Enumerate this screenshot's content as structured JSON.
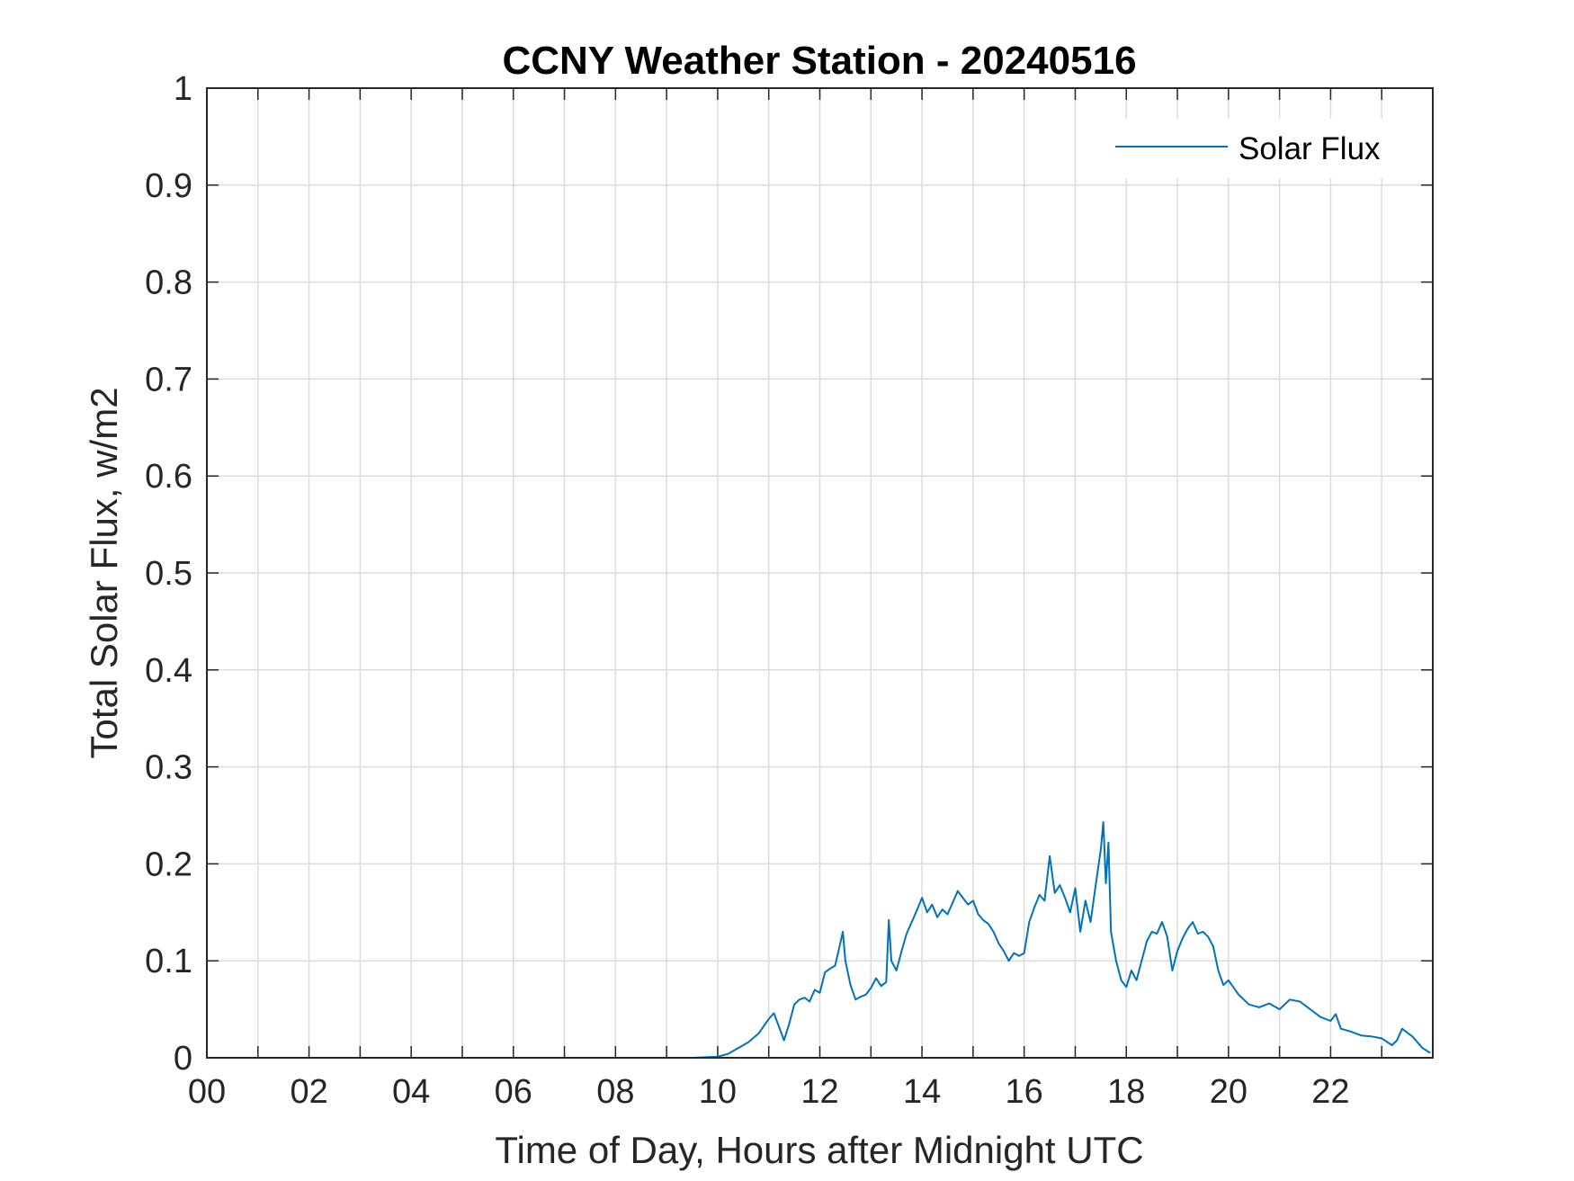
{
  "chart_data": {
    "type": "line",
    "title": "CCNY Weather Station - 20240516",
    "xlabel": "Time of Day, Hours after Midnight UTC",
    "ylabel": "Total Solar Flux, w/m2",
    "xlim": [
      0,
      24
    ],
    "ylim": [
      0,
      1
    ],
    "grid": true,
    "legend_position": "top-right",
    "x_ticks": [
      {
        "value": 0,
        "label": "00"
      },
      {
        "value": 2,
        "label": "02"
      },
      {
        "value": 4,
        "label": "04"
      },
      {
        "value": 6,
        "label": "06"
      },
      {
        "value": 8,
        "label": "08"
      },
      {
        "value": 10,
        "label": "10"
      },
      {
        "value": 12,
        "label": "12"
      },
      {
        "value": 14,
        "label": "14"
      },
      {
        "value": 16,
        "label": "16"
      },
      {
        "value": 18,
        "label": "18"
      },
      {
        "value": 20,
        "label": "20"
      },
      {
        "value": 22,
        "label": "22"
      }
    ],
    "x_minor_grid": [
      1,
      3,
      5,
      7,
      9,
      11,
      13,
      15,
      17,
      19,
      21,
      23
    ],
    "y_ticks": [
      {
        "value": 0,
        "label": "0"
      },
      {
        "value": 0.1,
        "label": "0.1"
      },
      {
        "value": 0.2,
        "label": "0.2"
      },
      {
        "value": 0.3,
        "label": "0.3"
      },
      {
        "value": 0.4,
        "label": "0.4"
      },
      {
        "value": 0.5,
        "label": "0.5"
      },
      {
        "value": 0.6,
        "label": "0.6"
      },
      {
        "value": 0.7,
        "label": "0.7"
      },
      {
        "value": 0.8,
        "label": "0.8"
      },
      {
        "value": 0.9,
        "label": "0.9"
      },
      {
        "value": 1,
        "label": "1"
      }
    ],
    "series": [
      {
        "name": "Solar Flux",
        "color": "#0072BD",
        "x": [
          0,
          9.5,
          10.0,
          10.2,
          10.4,
          10.6,
          10.8,
          11.0,
          11.1,
          11.2,
          11.3,
          11.4,
          11.5,
          11.6,
          11.7,
          11.8,
          11.9,
          12.0,
          12.1,
          12.2,
          12.3,
          12.4,
          12.45,
          12.5,
          12.6,
          12.7,
          12.8,
          12.9,
          13.0,
          13.1,
          13.2,
          13.3,
          13.35,
          13.4,
          13.5,
          13.6,
          13.7,
          13.8,
          13.9,
          14.0,
          14.1,
          14.2,
          14.3,
          14.4,
          14.5,
          14.6,
          14.7,
          14.8,
          14.9,
          15.0,
          15.1,
          15.2,
          15.3,
          15.4,
          15.5,
          15.6,
          15.7,
          15.8,
          15.9,
          16.0,
          16.1,
          16.2,
          16.3,
          16.4,
          16.5,
          16.6,
          16.7,
          16.8,
          16.9,
          17.0,
          17.1,
          17.2,
          17.3,
          17.4,
          17.5,
          17.55,
          17.6,
          17.65,
          17.7,
          17.8,
          17.9,
          18.0,
          18.1,
          18.2,
          18.3,
          18.4,
          18.5,
          18.6,
          18.7,
          18.8,
          18.9,
          19.0,
          19.1,
          19.2,
          19.3,
          19.4,
          19.5,
          19.6,
          19.7,
          19.8,
          19.9,
          20.0,
          20.2,
          20.4,
          20.6,
          20.8,
          21.0,
          21.2,
          21.4,
          21.6,
          21.8,
          22.0,
          22.1,
          22.2,
          22.4,
          22.6,
          22.8,
          23.0,
          23.2,
          23.3,
          23.4,
          23.6,
          23.8,
          23.95
        ],
        "values": [
          0,
          0,
          0.001,
          0.004,
          0.01,
          0.016,
          0.025,
          0.04,
          0.046,
          0.032,
          0.018,
          0.035,
          0.055,
          0.06,
          0.062,
          0.058,
          0.07,
          0.067,
          0.088,
          0.092,
          0.095,
          0.118,
          0.13,
          0.1,
          0.075,
          0.06,
          0.063,
          0.065,
          0.072,
          0.082,
          0.074,
          0.078,
          0.142,
          0.1,
          0.09,
          0.11,
          0.128,
          0.14,
          0.152,
          0.165,
          0.15,
          0.158,
          0.145,
          0.153,
          0.148,
          0.16,
          0.172,
          0.165,
          0.158,
          0.162,
          0.148,
          0.142,
          0.138,
          0.13,
          0.118,
          0.11,
          0.1,
          0.108,
          0.105,
          0.108,
          0.14,
          0.155,
          0.168,
          0.162,
          0.208,
          0.17,
          0.178,
          0.165,
          0.15,
          0.175,
          0.13,
          0.162,
          0.14,
          0.178,
          0.215,
          0.243,
          0.18,
          0.222,
          0.13,
          0.1,
          0.08,
          0.073,
          0.09,
          0.08,
          0.1,
          0.12,
          0.13,
          0.128,
          0.14,
          0.125,
          0.09,
          0.11,
          0.123,
          0.133,
          0.14,
          0.128,
          0.13,
          0.125,
          0.115,
          0.09,
          0.075,
          0.08,
          0.065,
          0.055,
          0.052,
          0.056,
          0.05,
          0.06,
          0.058,
          0.05,
          0.042,
          0.038,
          0.045,
          0.03,
          0.027,
          0.023,
          0.022,
          0.02,
          0.013,
          0.018,
          0.03,
          0.022,
          0.01,
          0.005
        ]
      }
    ]
  }
}
